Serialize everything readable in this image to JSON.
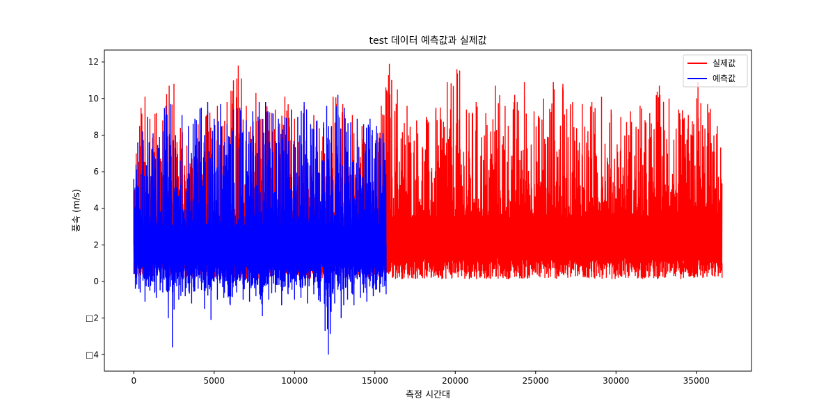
{
  "chart_data": {
    "type": "line",
    "title": "test 데이터 예측값과 실제값",
    "xlabel": "측정 시간대",
    "ylabel": "풍속 (m/s)",
    "xlim": [
      -1830,
      38430
    ],
    "ylim": [
      -4.9,
      12.65
    ],
    "x_ticks": [
      0,
      5000,
      10000,
      15000,
      20000,
      25000,
      30000,
      35000
    ],
    "x_tick_labels": [
      "0",
      "5000",
      "10000",
      "15000",
      "20000",
      "25000",
      "30000",
      "35000"
    ],
    "y_ticks": [
      -4,
      -2,
      0,
      2,
      4,
      6,
      8,
      10,
      12
    ],
    "y_tick_labels": [
      "□4",
      "□2",
      "0",
      "2",
      "4",
      "6",
      "8",
      "10",
      "12"
    ],
    "grid": false,
    "legend_position": "top-right",
    "series": [
      {
        "name": "실제값",
        "color": "#ff0000",
        "x_range": [
          0,
          36600
        ],
        "points": [
          [
            0,
            0.4
          ],
          [
            150,
            7.0
          ],
          [
            300,
            0.3
          ],
          [
            450,
            9.5
          ],
          [
            600,
            0.2
          ],
          [
            700,
            10.1
          ],
          [
            850,
            0.4
          ],
          [
            1000,
            8.9
          ],
          [
            1200,
            0.3
          ],
          [
            1400,
            9.2
          ],
          [
            1600,
            0.5
          ],
          [
            1800,
            8.8
          ],
          [
            2000,
            0.2
          ],
          [
            2200,
            10.7
          ],
          [
            2350,
            0.4
          ],
          [
            2500,
            10.8
          ],
          [
            2700,
            0.3
          ],
          [
            2900,
            8.4
          ],
          [
            3100,
            0.2
          ],
          [
            3400,
            8.3
          ],
          [
            3700,
            0.4
          ],
          [
            4000,
            8.6
          ],
          [
            4300,
            0.2
          ],
          [
            4600,
            9.3
          ],
          [
            4900,
            0.4
          ],
          [
            5200,
            9.6
          ],
          [
            5500,
            0.3
          ],
          [
            5800,
            9.8
          ],
          [
            6000,
            0.2
          ],
          [
            6200,
            11.0
          ],
          [
            6350,
            0.4
          ],
          [
            6500,
            11.8
          ],
          [
            6700,
            0.3
          ],
          [
            7000,
            9.6
          ],
          [
            7300,
            0.2
          ],
          [
            7600,
            10.3
          ],
          [
            7900,
            0.4
          ],
          [
            8200,
            9.7
          ],
          [
            8500,
            0.3
          ],
          [
            8800,
            9.4
          ],
          [
            9100,
            0.2
          ],
          [
            9400,
            10.1
          ],
          [
            9700,
            0.4
          ],
          [
            10000,
            8.9
          ],
          [
            10300,
            0.3
          ],
          [
            10600,
            9.6
          ],
          [
            10900,
            0.2
          ],
          [
            11200,
            9.1
          ],
          [
            11500,
            0.3
          ],
          [
            11800,
            8.6
          ],
          [
            12100,
            0.2
          ],
          [
            12400,
            10.1
          ],
          [
            12700,
            0.4
          ],
          [
            13000,
            9.7
          ],
          [
            13300,
            0.3
          ],
          [
            13600,
            9.1
          ],
          [
            13900,
            0.2
          ],
          [
            14200,
            8.5
          ],
          [
            14500,
            0.3
          ],
          [
            14800,
            8.0
          ],
          [
            15100,
            0.2
          ],
          [
            15400,
            9.6
          ],
          [
            15650,
            0.3
          ],
          [
            15900,
            11.9
          ],
          [
            16100,
            0.2
          ],
          [
            16400,
            10.5
          ],
          [
            16700,
            0.3
          ],
          [
            17000,
            9.6
          ],
          [
            17300,
            0.2
          ],
          [
            17600,
            8.8
          ],
          [
            17900,
            0.3
          ],
          [
            18200,
            9.0
          ],
          [
            18500,
            0.2
          ],
          [
            18800,
            9.5
          ],
          [
            19100,
            0.3
          ],
          [
            19500,
            10.9
          ],
          [
            19800,
            0.2
          ],
          [
            20100,
            11.6
          ],
          [
            20400,
            0.3
          ],
          [
            20700,
            9.4
          ],
          [
            21000,
            0.2
          ],
          [
            21300,
            9.8
          ],
          [
            21600,
            0.3
          ],
          [
            21900,
            9.2
          ],
          [
            22200,
            0.2
          ],
          [
            22500,
            10.7
          ],
          [
            22800,
            0.3
          ],
          [
            23100,
            9.6
          ],
          [
            23400,
            0.2
          ],
          [
            23700,
            10.2
          ],
          [
            24000,
            0.3
          ],
          [
            24300,
            10.9
          ],
          [
            24600,
            0.2
          ],
          [
            24900,
            9.3
          ],
          [
            25200,
            0.3
          ],
          [
            25500,
            10.0
          ],
          [
            25800,
            0.2
          ],
          [
            26100,
            10.9
          ],
          [
            26400,
            0.3
          ],
          [
            26700,
            10.8
          ],
          [
            27000,
            0.2
          ],
          [
            27300,
            9.8
          ],
          [
            27600,
            0.3
          ],
          [
            27900,
            9.7
          ],
          [
            28200,
            0.2
          ],
          [
            28500,
            9.8
          ],
          [
            28800,
            0.3
          ],
          [
            29100,
            10.1
          ],
          [
            29400,
            0.2
          ],
          [
            29700,
            9.4
          ],
          [
            30000,
            0.3
          ],
          [
            30300,
            9.0
          ],
          [
            30600,
            0.2
          ],
          [
            30900,
            9.3
          ],
          [
            31200,
            0.3
          ],
          [
            31500,
            9.6
          ],
          [
            31800,
            0.2
          ],
          [
            32100,
            9.2
          ],
          [
            32400,
            0.3
          ],
          [
            32700,
            10.7
          ],
          [
            33000,
            0.2
          ],
          [
            33300,
            10.0
          ],
          [
            33600,
            0.3
          ],
          [
            33900,
            9.4
          ],
          [
            34200,
            0.2
          ],
          [
            34500,
            9.1
          ],
          [
            34800,
            0.3
          ],
          [
            35100,
            10.9
          ],
          [
            35400,
            0.2
          ],
          [
            35700,
            9.7
          ],
          [
            36000,
            0.3
          ],
          [
            36300,
            8.5
          ],
          [
            36600,
            0.2
          ]
        ]
      },
      {
        "name": "예측값",
        "color": "#0000ff",
        "x_range": [
          0,
          15700
        ],
        "points": [
          [
            0,
            5.6
          ],
          [
            100,
            -0.4
          ],
          [
            250,
            7.6
          ],
          [
            400,
            -0.6
          ],
          [
            550,
            8.2
          ],
          [
            700,
            -1.1
          ],
          [
            850,
            9.0
          ],
          [
            1000,
            -0.5
          ],
          [
            1200,
            8.1
          ],
          [
            1400,
            -0.9
          ],
          [
            1600,
            7.9
          ],
          [
            1800,
            -0.6
          ],
          [
            2000,
            9.6
          ],
          [
            2150,
            -2.0
          ],
          [
            2300,
            9.7
          ],
          [
            2400,
            -3.6
          ],
          [
            2600,
            8.0
          ],
          [
            2800,
            -1.0
          ],
          [
            3000,
            9.1
          ],
          [
            3200,
            -0.8
          ],
          [
            3400,
            8.5
          ],
          [
            3600,
            -1.2
          ],
          [
            3800,
            8.9
          ],
          [
            4000,
            -0.4
          ],
          [
            4200,
            9.5
          ],
          [
            4400,
            -1.5
          ],
          [
            4600,
            9.8
          ],
          [
            4800,
            -2.1
          ],
          [
            5000,
            8.9
          ],
          [
            5200,
            -1.0
          ],
          [
            5400,
            9.7
          ],
          [
            5600,
            -0.9
          ],
          [
            5800,
            8.6
          ],
          [
            6000,
            -1.3
          ],
          [
            6200,
            9.4
          ],
          [
            6400,
            -0.6
          ],
          [
            6600,
            9.5
          ],
          [
            6800,
            -1.0
          ],
          [
            7000,
            8.8
          ],
          [
            7200,
            -1.1
          ],
          [
            7400,
            9.3
          ],
          [
            7600,
            -0.8
          ],
          [
            7800,
            9.8
          ],
          [
            8000,
            -1.9
          ],
          [
            8200,
            9.8
          ],
          [
            8400,
            -1.0
          ],
          [
            8600,
            9.2
          ],
          [
            8800,
            -0.6
          ],
          [
            9000,
            8.9
          ],
          [
            9200,
            -1.3
          ],
          [
            9400,
            9.0
          ],
          [
            9600,
            -0.7
          ],
          [
            9800,
            9.4
          ],
          [
            10000,
            -1.0
          ],
          [
            10200,
            9.0
          ],
          [
            10400,
            -0.9
          ],
          [
            10600,
            9.8
          ],
          [
            10800,
            -1.2
          ],
          [
            11000,
            8.6
          ],
          [
            11200,
            -0.7
          ],
          [
            11400,
            8.8
          ],
          [
            11600,
            -1.1
          ],
          [
            11800,
            8.7
          ],
          [
            11900,
            -2.7
          ],
          [
            12000,
            9.6
          ],
          [
            12100,
            -4.0
          ],
          [
            12300,
            8.5
          ],
          [
            12500,
            -1.2
          ],
          [
            12700,
            10.2
          ],
          [
            12900,
            -2.0
          ],
          [
            13100,
            9.5
          ],
          [
            13300,
            -1.0
          ],
          [
            13500,
            8.7
          ],
          [
            13700,
            -1.3
          ],
          [
            13900,
            8.9
          ],
          [
            14100,
            -0.9
          ],
          [
            14300,
            8.6
          ],
          [
            14500,
            -1.1
          ],
          [
            14700,
            8.9
          ],
          [
            14900,
            -0.8
          ],
          [
            15100,
            8.5
          ],
          [
            15300,
            -0.6
          ],
          [
            15500,
            8.1
          ],
          [
            15700,
            -0.7
          ]
        ]
      }
    ]
  }
}
